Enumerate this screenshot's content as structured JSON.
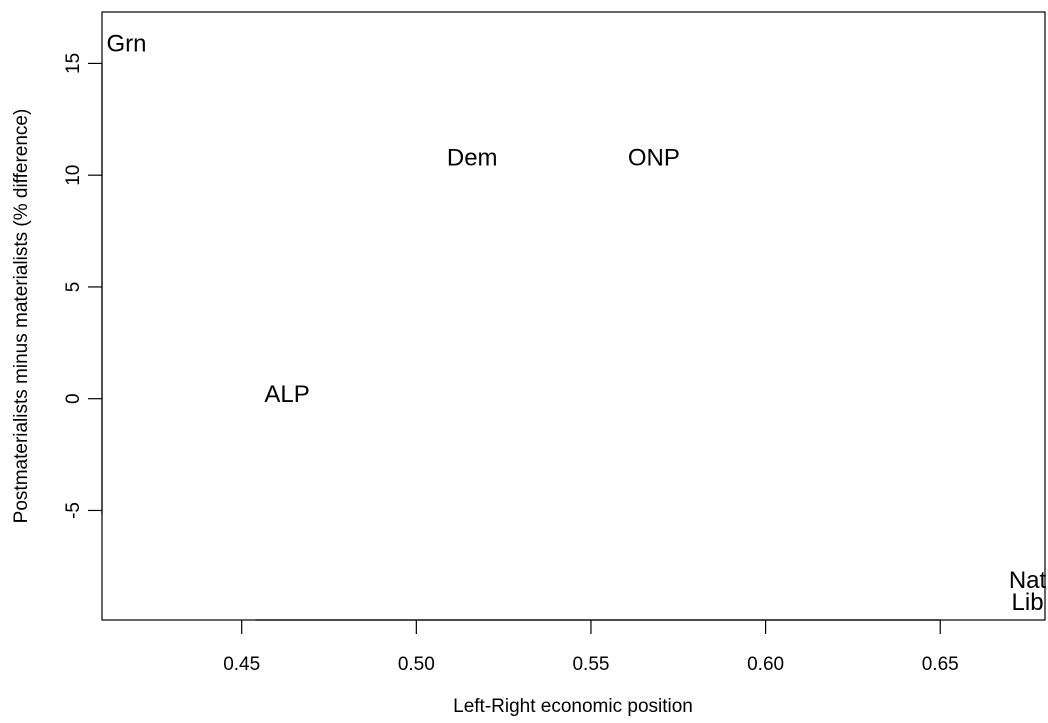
{
  "chart_data": {
    "type": "scatter",
    "title": "",
    "xlabel": "Left-Right economic position",
    "ylabel": "Postmaterialists minus materialists (% difference)",
    "xlim": [
      0.41,
      0.68
    ],
    "ylim": [
      -9.9,
      17.3
    ],
    "x_ticks": [
      0.45,
      0.5,
      0.55,
      0.6,
      0.65
    ],
    "x_tick_labels": [
      "0.45",
      "0.50",
      "0.55",
      "0.60",
      "0.65"
    ],
    "y_ticks": [
      -5,
      0,
      5,
      10,
      15
    ],
    "y_tick_labels": [
      "-5",
      "0",
      "5",
      "10",
      "15"
    ],
    "grid": false,
    "points": [
      {
        "label": "Grn",
        "x": 0.417,
        "y": 15.9
      },
      {
        "label": "Dem",
        "x": 0.516,
        "y": 10.8
      },
      {
        "label": "ONP",
        "x": 0.568,
        "y": 10.8
      },
      {
        "label": "ALP",
        "x": 0.463,
        "y": 0.2
      },
      {
        "label": "Nat",
        "x": 0.675,
        "y": -8.1
      },
      {
        "label": "Lib",
        "x": 0.675,
        "y": -9.1
      }
    ]
  }
}
